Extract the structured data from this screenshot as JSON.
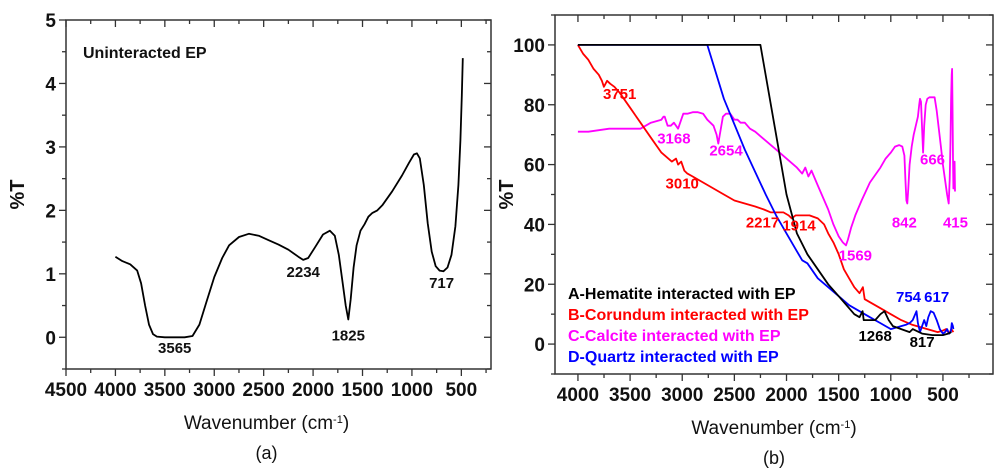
{
  "chart_data": [
    {
      "type": "line",
      "panel_label": "(a)",
      "title": "Uninteracted EP",
      "xlabel": "Wavenumber (cm",
      "xlabel_sup": "-1",
      "xlabel_close": ")",
      "ylabel": "%T",
      "xlim": [
        4500,
        200
      ],
      "ylim": [
        -0.5,
        5
      ],
      "x_ticks": [
        4500,
        4000,
        3500,
        3000,
        2500,
        2000,
        1500,
        1000,
        500
      ],
      "y_ticks": [
        0,
        1,
        2,
        3,
        4,
        5
      ],
      "grid": false,
      "series": [
        {
          "name": "Uninteracted EP",
          "color": "#000000",
          "x": [
            4000,
            3930,
            3850,
            3780,
            3740,
            3700,
            3660,
            3620,
            3580,
            3500,
            3400,
            3300,
            3220,
            3150,
            3080,
            3000,
            2920,
            2850,
            2750,
            2650,
            2550,
            2450,
            2350,
            2250,
            2150,
            2100,
            2050,
            1980,
            1900,
            1830,
            1780,
            1740,
            1700,
            1670,
            1644,
            1620,
            1590,
            1560,
            1520,
            1480,
            1440,
            1400,
            1350,
            1300,
            1200,
            1100,
            1030,
            980,
            950,
            920,
            880,
            840,
            800,
            760,
            720,
            682,
            640,
            600,
            560,
            530,
            510,
            495,
            485
          ],
          "y": [
            1.27,
            1.2,
            1.15,
            1.05,
            0.85,
            0.5,
            0.2,
            0.05,
            0.01,
            0.0,
            0.0,
            0.0,
            0.02,
            0.2,
            0.55,
            0.95,
            1.25,
            1.45,
            1.58,
            1.63,
            1.6,
            1.53,
            1.46,
            1.38,
            1.27,
            1.22,
            1.25,
            1.42,
            1.62,
            1.68,
            1.6,
            1.3,
            0.85,
            0.5,
            0.28,
            0.6,
            1.1,
            1.45,
            1.68,
            1.78,
            1.9,
            1.96,
            2.0,
            2.08,
            2.3,
            2.55,
            2.75,
            2.88,
            2.9,
            2.82,
            2.4,
            1.8,
            1.35,
            1.12,
            1.05,
            1.04,
            1.1,
            1.3,
            1.75,
            2.4,
            3.1,
            3.8,
            4.4
          ]
        }
      ],
      "annotations": [
        {
          "text": "3565",
          "x": 3400,
          "y": -0.25
        },
        {
          "text": "2234",
          "x": 2100,
          "y": 0.95
        },
        {
          "text": "1825",
          "x": 1644,
          "y": -0.05
        },
        {
          "text": "717",
          "x": 700,
          "y": 0.78
        }
      ]
    },
    {
      "type": "line",
      "panel_label": "(b)",
      "xlabel": "Wavenumber (cm",
      "xlabel_sup": "-1",
      "xlabel_close": ")",
      "ylabel": "%T",
      "xlim": [
        4220,
        20
      ],
      "ylim": [
        -10,
        110
      ],
      "x_ticks": [
        4000,
        3500,
        3000,
        2500,
        2000,
        1500,
        1000,
        500
      ],
      "y_ticks": [
        0,
        20,
        40,
        60,
        80,
        100
      ],
      "grid": false,
      "legend_position": "bottom-left",
      "series": [
        {
          "name": "A-Hematite interacted with EP",
          "color": "#000000",
          "x": [
            4000,
            2250,
            2100,
            2000,
            1900,
            1800,
            1700,
            1600,
            1500,
            1450,
            1400,
            1350,
            1300,
            1270,
            1260,
            1240,
            1150,
            1100,
            1060,
            1020,
            980,
            900,
            820,
            790,
            700,
            600,
            500,
            450,
            420
          ],
          "y": [
            100,
            100,
            70,
            50,
            37,
            30,
            25,
            20,
            16,
            14,
            12,
            10,
            9,
            11,
            8,
            8,
            8,
            10,
            11,
            8,
            6,
            5,
            4,
            5,
            3.5,
            3,
            3,
            3.5,
            4
          ],
          "annotations": [
            {
              "text": "1268",
              "x": 1150,
              "y": 1
            },
            {
              "text": "817",
              "x": 700,
              "y": -1
            }
          ]
        },
        {
          "name": "B-Corundum interacted with EP",
          "color": "#ff0000",
          "x": [
            4000,
            3950,
            3900,
            3850,
            3800,
            3770,
            3751,
            3720,
            3690,
            3650,
            3600,
            3500,
            3400,
            3300,
            3200,
            3100,
            3060,
            3040,
            3010,
            2980,
            2950,
            2900,
            2800,
            2700,
            2600,
            2500,
            2400,
            2300,
            2217,
            2150,
            2080,
            2030,
            1980,
            1950,
            1914,
            1850,
            1780,
            1700,
            1640,
            1600,
            1550,
            1500,
            1450,
            1400,
            1350,
            1300,
            1268,
            1250,
            1200,
            1100,
            1050,
            1000,
            900,
            800,
            700,
            600,
            550,
            500,
            470,
            440,
            420,
            400
          ],
          "y": [
            100,
            97,
            95,
            92,
            90,
            88,
            86,
            88,
            87,
            86,
            84,
            79,
            74,
            69,
            64,
            61,
            62,
            60,
            61,
            58,
            57,
            56,
            54,
            52,
            50,
            48,
            47,
            46,
            45,
            44,
            44,
            44,
            43,
            42,
            43,
            43,
            43,
            42,
            40,
            37,
            34,
            30,
            25,
            22,
            19,
            17,
            19,
            15,
            14,
            12,
            11,
            10,
            8,
            6.5,
            5.5,
            4.5,
            4,
            4.5,
            5,
            3.5,
            5,
            4
          ],
          "annotations": [
            {
              "text": "3751",
              "x": 3600,
              "y": 82
            },
            {
              "text": "3010",
              "x": 3000,
              "y": 52
            },
            {
              "text": "2217",
              "x": 2230,
              "y": 39
            },
            {
              "text": "1914",
              "x": 1880,
              "y": 38
            }
          ]
        },
        {
          "name": "C-Calcite interacted with EP",
          "color": "#ff00ff",
          "x": [
            4000,
            3900,
            3800,
            3700,
            3600,
            3500,
            3400,
            3300,
            3200,
            3180,
            3168,
            3140,
            3110,
            3080,
            3060,
            3040,
            3010,
            2990,
            2950,
            2900,
            2850,
            2800,
            2760,
            2730,
            2700,
            2670,
            2654,
            2640,
            2610,
            2580,
            2540,
            2500,
            2470,
            2440,
            2400,
            2350,
            2300,
            2200,
            2100,
            2000,
            1900,
            1850,
            1820,
            1800,
            1790,
            1760,
            1700,
            1650,
            1600,
            1550,
            1500,
            1460,
            1430,
            1410,
            1380,
            1340,
            1280,
            1200,
            1100,
            1050,
            1000,
            960,
            920,
            890,
            870,
            860,
            850,
            842,
            832,
            820,
            800,
            780,
            760,
            740,
            728,
            720,
            710,
            700,
            690,
            680,
            665,
            650,
            630,
            600,
            580,
            560,
            540,
            520,
            500,
            480,
            460,
            445,
            435,
            428,
            422,
            416,
            412,
            408,
            404,
            400,
            396,
            392,
            388,
            384
          ],
          "y": [
            71,
            71,
            71.5,
            72,
            72,
            72,
            72,
            74,
            75,
            76,
            76,
            73,
            73,
            74,
            73,
            72,
            75,
            77,
            77,
            77.5,
            77.5,
            77,
            75,
            74,
            73,
            70,
            67,
            70,
            76,
            77,
            77,
            75,
            75,
            74,
            74,
            72,
            71,
            68,
            65,
            62,
            59,
            57,
            59,
            57,
            56,
            58,
            53,
            49,
            45,
            40,
            36,
            34,
            33,
            35,
            39,
            43,
            48,
            54,
            59,
            62,
            64,
            66,
            66.5,
            66,
            63,
            55,
            48,
            47,
            52,
            60,
            66,
            70,
            73,
            76,
            80,
            82,
            81,
            72,
            64,
            73,
            80,
            82,
            82.5,
            82.5,
            82.5,
            78,
            72,
            66,
            60,
            55,
            50,
            47,
            55,
            68,
            82,
            90,
            92,
            80,
            62,
            52,
            55,
            60,
            61,
            51
          ]
        },
        {
          "name": "D-Quartz interacted with EP",
          "color": "#0000ff",
          "x": [
            4000,
            2760,
            2600,
            2400,
            2200,
            2100,
            2000,
            1900,
            1850,
            1800,
            1700,
            1600,
            1500,
            1400,
            1300,
            1250,
            1200,
            1100,
            1050,
            1000,
            950,
            900,
            850,
            820,
            790,
            754,
            740,
            720,
            700,
            680,
            660,
            640,
            617,
            590,
            560,
            530,
            500,
            480,
            460,
            440,
            425,
            415,
            405,
            400
          ],
          "y": [
            100,
            100,
            82,
            65,
            50,
            43,
            37,
            31,
            28,
            27,
            22,
            19,
            16,
            13,
            11,
            10,
            9,
            7,
            6,
            5,
            5.5,
            6,
            6.5,
            7,
            8,
            11,
            7,
            4,
            6,
            8,
            6,
            9,
            11,
            10.5,
            8,
            5,
            3.5,
            4,
            5,
            3.5,
            4,
            7,
            6,
            5
          ],
          "annotations": [
            {
              "text": "754",
              "x": 830,
              "y": 14
            },
            {
              "text": "617",
              "x": 560,
              "y": 14
            }
          ]
        }
      ],
      "calcite_annotations": [
        {
          "text": "3168",
          "x": 3080,
          "y": 67
        },
        {
          "text": "2654",
          "x": 2580,
          "y": 63
        },
        {
          "text": "1569",
          "x": 1340,
          "y": 28
        },
        {
          "text": "842",
          "x": 870,
          "y": 39
        },
        {
          "text": "666",
          "x": 600,
          "y": 60
        },
        {
          "text": "415",
          "x": 380,
          "y": 39
        }
      ]
    }
  ]
}
